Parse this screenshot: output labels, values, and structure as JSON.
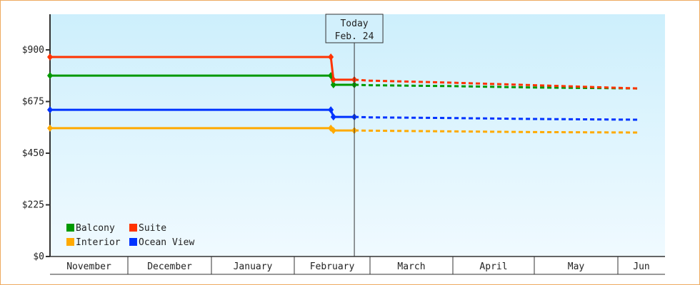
{
  "chart_data": {
    "type": "line",
    "title": "",
    "xlabel": "",
    "ylabel": "",
    "ylim": [
      0,
      1050
    ],
    "yticks": [
      0,
      225,
      450,
      675,
      900
    ],
    "ytick_labels": [
      "$0",
      "$225",
      "$450",
      "$675",
      "$900"
    ],
    "month_labels": [
      "November",
      "December",
      "January",
      "February",
      "March",
      "April",
      "May",
      "Jun"
    ],
    "today_marker": {
      "line1": "Today",
      "line2": "Feb. 24",
      "date": "Feb 24"
    },
    "legend_placement": "bottom-left",
    "grid": false,
    "background_gradient": [
      "#cdeffc",
      "#f0faff"
    ],
    "series": [
      {
        "name": "Balcony",
        "color": "#009900",
        "actual": [
          [
            "Nov 1",
            788
          ],
          [
            "Feb 15",
            788
          ],
          [
            "Feb 16",
            748
          ],
          [
            "Feb 24",
            748
          ]
        ],
        "forecast": [
          [
            "Feb 24",
            748
          ],
          [
            "Mar 1",
            746
          ],
          [
            "Apr 1",
            742
          ],
          [
            "May 1",
            736
          ],
          [
            "Jun 8",
            732
          ]
        ]
      },
      {
        "name": "Suite",
        "color": "#ff3300",
        "actual": [
          [
            "Nov 1",
            869
          ],
          [
            "Feb 15",
            869
          ],
          [
            "Feb 16",
            770
          ],
          [
            "Feb 24",
            770
          ]
        ],
        "forecast": [
          [
            "Feb 24",
            770
          ],
          [
            "Mar 1",
            766
          ],
          [
            "Apr 1",
            757
          ],
          [
            "May 1",
            746
          ],
          [
            "Jun 8",
            732
          ]
        ]
      },
      {
        "name": "Interior",
        "color": "#ffaa00",
        "actual": [
          [
            "Nov 1",
            559
          ],
          [
            "Feb 15",
            559
          ],
          [
            "Feb 16",
            549
          ],
          [
            "Feb 24",
            549
          ]
        ],
        "forecast": [
          [
            "Feb 24",
            549
          ],
          [
            "Mar 1",
            548
          ],
          [
            "Apr 1",
            545
          ],
          [
            "May 1",
            542
          ],
          [
            "Jun 8",
            540
          ]
        ]
      },
      {
        "name": "Ocean View",
        "color": "#0033ff",
        "actual": [
          [
            "Nov 1",
            639
          ],
          [
            "Feb 15",
            639
          ],
          [
            "Feb 16",
            608
          ],
          [
            "Feb 24",
            608
          ]
        ],
        "forecast": [
          [
            "Feb 24",
            608
          ],
          [
            "Mar 1",
            606
          ],
          [
            "Apr 1",
            603
          ],
          [
            "May 1",
            599
          ],
          [
            "Jun 8",
            596
          ]
        ]
      }
    ]
  }
}
